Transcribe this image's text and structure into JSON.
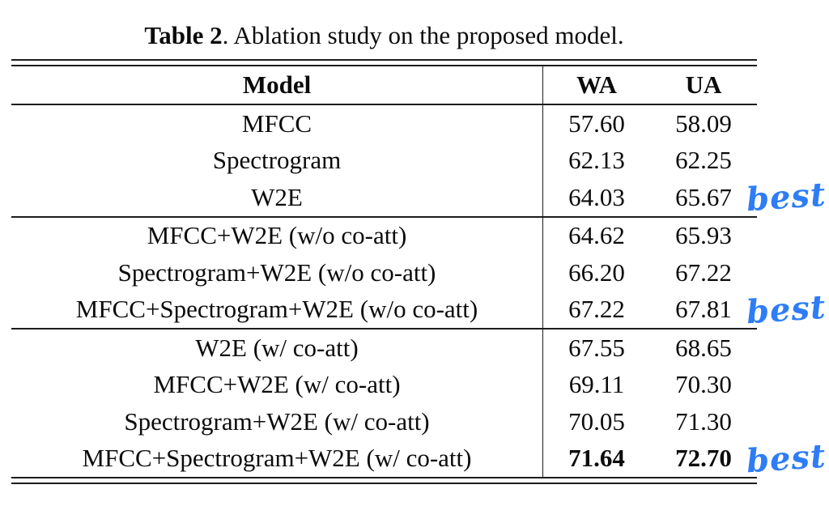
{
  "title": {
    "bold": "Table 2",
    "rest": ". Ablation study on the proposed model."
  },
  "annotation_color": "#2e7df6",
  "table": {
    "columns": [
      "Model",
      "WA",
      "UA"
    ],
    "groups": [
      {
        "rows": [
          {
            "model": "MFCC",
            "wa": "57.60",
            "ua": "58.09"
          },
          {
            "model": "Spectrogram",
            "wa": "62.13",
            "ua": "62.25"
          },
          {
            "model": "W2E",
            "wa": "64.03",
            "ua": "65.67",
            "annotation": "best"
          }
        ]
      },
      {
        "rows": [
          {
            "model": "MFCC+W2E (w/o co-att)",
            "wa": "64.62",
            "ua": "65.93"
          },
          {
            "model": "Spectrogram+W2E (w/o co-att)",
            "wa": "66.20",
            "ua": "67.22"
          },
          {
            "model": "MFCC+Spectrogram+W2E (w/o co-att)",
            "wa": "67.22",
            "ua": "67.81",
            "annotation": "best"
          }
        ]
      },
      {
        "rows": [
          {
            "model": "W2E (w/ co-att)",
            "wa": "67.55",
            "ua": "68.65"
          },
          {
            "model": "MFCC+W2E (w/ co-att)",
            "wa": "69.11",
            "ua": "70.30"
          },
          {
            "model": "Spectrogram+W2E (w/ co-att)",
            "wa": "70.05",
            "ua": "71.30"
          },
          {
            "model": "MFCC+Spectrogram+W2E (w/ co-att)",
            "wa": "71.64",
            "ua": "72.70",
            "bold": true,
            "annotation": "best"
          }
        ]
      }
    ]
  },
  "chart_data": {
    "type": "table",
    "title": "Table 2. Ablation study on the proposed model.",
    "columns": [
      "Model",
      "WA",
      "UA"
    ],
    "rows": [
      [
        "MFCC",
        57.6,
        58.09
      ],
      [
        "Spectrogram",
        62.13,
        62.25
      ],
      [
        "W2E",
        64.03,
        65.67
      ],
      [
        "MFCC+W2E (w/o co-att)",
        64.62,
        65.93
      ],
      [
        "Spectrogram+W2E (w/o co-att)",
        66.2,
        67.22
      ],
      [
        "MFCC+Spectrogram+W2E (w/o co-att)",
        67.22,
        67.81
      ],
      [
        "W2E (w/ co-att)",
        67.55,
        68.65
      ],
      [
        "MFCC+W2E (w/ co-att)",
        69.11,
        70.3
      ],
      [
        "Spectrogram+W2E (w/ co-att)",
        70.05,
        71.3
      ],
      [
        "MFCC+Spectrogram+W2E (w/ co-att)",
        71.64,
        72.7
      ]
    ],
    "annotations": [
      "best marked beside W2E",
      "best marked beside MFCC+Spectrogram+W2E (w/o co-att)",
      "best marked beside MFCC+Spectrogram+W2E (w/ co-att)"
    ]
  }
}
